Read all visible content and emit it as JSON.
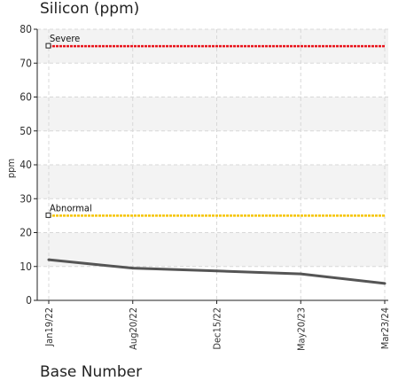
{
  "chart_data": {
    "type": "line",
    "title": "Silicon (ppm)",
    "xlabel": "Base Number",
    "ylabel": "ppm",
    "ylim": [
      0,
      80
    ],
    "yticks": [
      0,
      10,
      20,
      30,
      40,
      50,
      60,
      70,
      80
    ],
    "categories": [
      "Jan19/22",
      "Aug20/22",
      "Dec15/22",
      "May20/23",
      "Mar23/24"
    ],
    "series": [
      {
        "values": [
          12,
          9.5,
          8.7,
          7.8,
          5
        ]
      }
    ],
    "thresholds": [
      {
        "label": "Severe",
        "value": 75,
        "color": "#e8141b"
      },
      {
        "label": "Abnormal",
        "value": 25,
        "color": "#f5c400"
      }
    ],
    "grid": true,
    "line_color": "#555555"
  }
}
